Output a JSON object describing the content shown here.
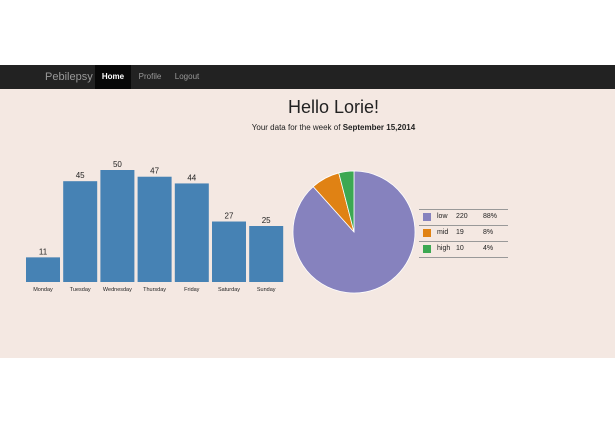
{
  "navbar": {
    "brand": "Pebilepsy",
    "items": [
      {
        "label": "Home",
        "active": true
      },
      {
        "label": "Profile",
        "active": false
      },
      {
        "label": "Logout",
        "active": false
      }
    ]
  },
  "main": {
    "greeting": "Hello Lorie!",
    "week_prefix": "Your data for the week of",
    "week_date": "September 15,2014"
  },
  "chart_data": [
    {
      "type": "bar",
      "categories": [
        "Monday",
        "Tuesday",
        "Wednesday",
        "Thursday",
        "Friday",
        "Saturday",
        "Sunday"
      ],
      "values": [
        11,
        45,
        50,
        47,
        44,
        27,
        25
      ],
      "ylim": [
        0,
        50
      ],
      "color": "#4682b4"
    },
    {
      "type": "pie",
      "labels": [
        "low",
        "mid",
        "high"
      ],
      "values": [
        220,
        19,
        10
      ],
      "percent_labels": [
        "88%",
        "8%",
        "4%"
      ],
      "colors": [
        "#8682be",
        "#e08214",
        "#3ca852"
      ],
      "legend_position": "right"
    }
  ]
}
